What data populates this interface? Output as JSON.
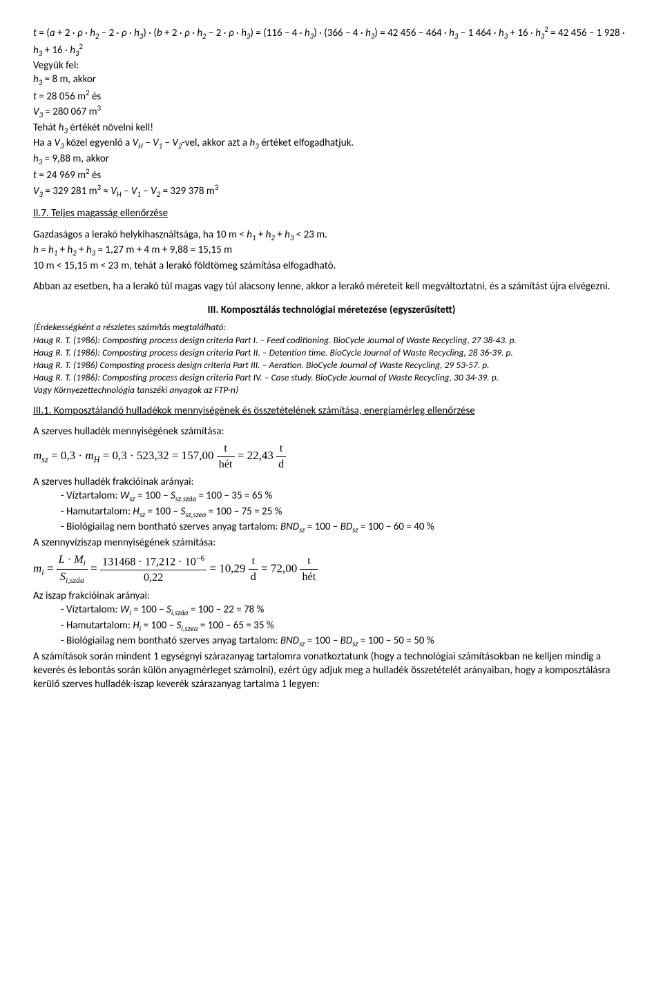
{
  "line1": "t = (a + 2 · ρ · h₂ – 2 · ρ · h₃) · (b + 2 · ρ · h₂ – 2 · ρ · h₃) = (116 – 4 · h₃) · (366 – 4 · h₃) = 42 456 – 464 · h₃ – 1 464 · h₃ + 16 · h₃² = 42 456 – 1 928 · h₃ + 16 · h₃²",
  "line2": "Vegyük fel:",
  "line3": "h₃ = 8 m, akkor",
  "line4": "t = 28 056 m² és",
  "line5": "V₃ = 280 067 m³",
  "line6": "Tehát h₃ értékét növelni kell!",
  "line7": "Ha a V₃ közel egyenlő a V_H – V₁ – V₂-vel, akkor azt a h₃ értéket elfogadhatjuk.",
  "line8": "h₃ = 9,88 m, akkor",
  "line9": "t = 24 969 m² és",
  "line10": "V₃ = 329 281 m³ ≈ V_H – V₁ – V₂ = 329 378 m³",
  "sec27": "II.7. Teljes magasság ellenőrzése",
  "p27a": "Gazdaságos a lerakó helykihasználtsága, ha 10 m < h₁ + h₂ + h₃ < 23 m.",
  "p27b": "h = h₁ + h₂ + h₃ = 1,27 m + 4 m + 9,88 = 15,15 m",
  "p27c": "10 m < 15,15 m < 23 m, tehát a lerakó földtömeg számítása elfogadható.",
  "p27d": "Abban az esetben, ha a lerakó túl magas vagy túl alacsony lenne, akkor a lerakó méreteit kell megváltoztatni, és a számítást újra elvégezni.",
  "hIII": "III. Komposztálás technológiai méretezése (egyszerűsített)",
  "ref0": "(Érdekességként a részletes számítás megtalálható:",
  "ref1": "Haug R. T. (1986): Composting process design criteria Part I. – Feed coditioning. BioCycle Journal of Waste Recycling, 27 38-43. p.",
  "ref2": "Haug R. T. (1986): Composting process design criteria Part II. – Detention time. BioCycle Journal of Waste Recycling, 28 36-39. p.",
  "ref3": "Haug R. T. (1986) Composting process design criteria Part III. – Aeration. BioCycle Journal of Waste Recycling, 29 53-57. p.",
  "ref4": "Haug R. T. (1986): Composting process design criteria Part IV. – Case study. BioCycle Journal of Waste Recycling, 30 34-39. p.",
  "ref5": "Vagy Környezettechnológia tanszéki anyagok az FTP-n)",
  "sec31": "III.1. Komposztálandó hulladékok mennyiségének és összetételének számítása, energiamérleg ellenőrzése",
  "p31a": "A szerves hulladék mennyiségének számítása:",
  "p31b": "A szerves hulladék frakcióinak arányai:",
  "p31b1": "- Víztartalom: W_sz = 100 − S_{sz,száa} = 100 − 35 = 65 %",
  "p31b2": "- Hamutartalom: H_sz = 100 − S_{sz,szea} = 100 − 75 = 25 %",
  "p31b3": "- Biológiailag nem bontható szerves anyag tartalom: BND_sz = 100 − BD_sz = 100 − 60 = 40 %",
  "p31c": "A szennyvíziszap mennyiségének számítása:",
  "p31d": "Az iszap frakcióinak arányai:",
  "p31d1": "- Víztartalom: W_i = 100 − S_{i,száa} = 100 − 22 = 78 %",
  "p31d2": "- Hamutartalom: H_i = 100 − S_{i,szea} = 100 − 65 = 35 %",
  "p31d3": "- Biológiailag nem bontható szerves anyag tartalom: BND_sz = 100 − BD_sz = 100 − 50 = 50 %",
  "p31e": "A számítások során mindent 1 egységnyi szárazanyag tartalomra vonatkoztatunk (hogy a technológiai számításokban ne kelljen mindig a keverés és lebontás során külön anyagmérleget számolni), ezért úgy adjuk meg a hulladék összetételét arányaiban, hogy a komposztálásra kerülő szerves hulladék-iszap keverék szárazanyag tartalma 1 legyen:",
  "eq1": {
    "lhs_var": "m",
    "lhs_sub": "sz",
    "expr": "= 0,3 · m",
    "mHsub": "H",
    "cont": " = 0,3 · 523,32 = 157,00",
    "frac1_num": "t",
    "frac1_den": "hét",
    "mid": " = 22,43",
    "frac2_num": "t",
    "frac2_den": "d"
  },
  "eq2": {
    "lhs_var": "m",
    "lhs_sub": "i",
    "eq": " = ",
    "big_num": "L · M",
    "big_num_sub": "i",
    "big_den": "S",
    "big_den_sub": "i,száa",
    "eq2": " = ",
    "num_val": "131468 · 17,212 · 10",
    "num_sup": "−6",
    "den_val": "0,22",
    "eq3": " = 10,29",
    "frac1_num": "t",
    "frac1_den": "d",
    "mid": " = 72,00",
    "frac2_num": "t",
    "frac2_den": "hét"
  }
}
